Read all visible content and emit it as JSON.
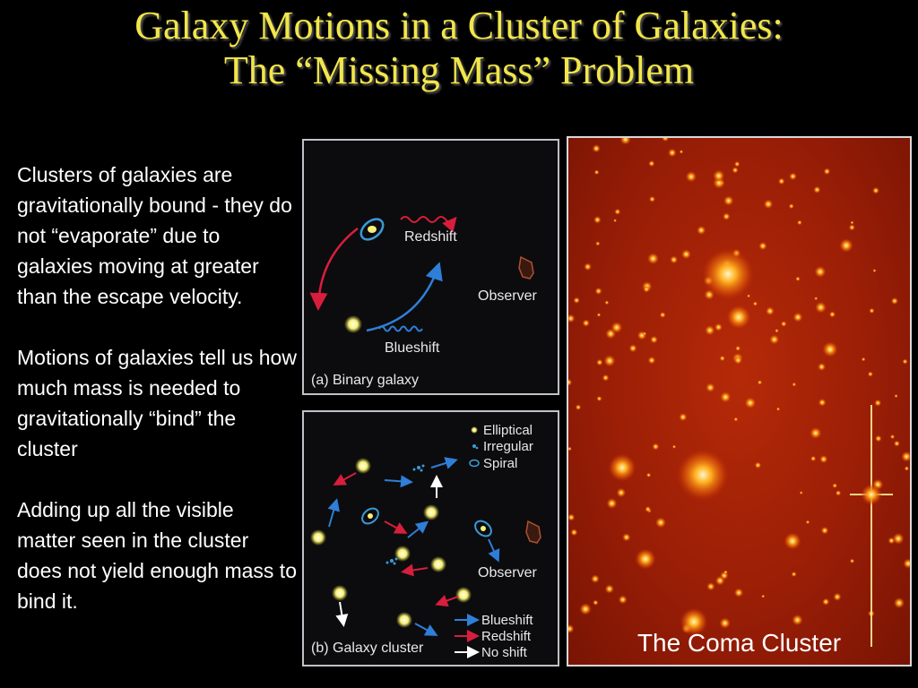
{
  "title": {
    "line1": "Galaxy Motions in a Cluster of Galaxies:",
    "line2": "The “Missing Mass” Problem"
  },
  "paragraphs": [
    "Clusters of galaxies are gravitationally bound - they do not “evaporate” due to galaxies moving at greater than the escape velocity.",
    "Motions of galaxies tell us how much mass is needed to gravitationally “bind” the cluster",
    "Adding up all the visible matter seen in the cluster does not yield enough mass to bind it."
  ],
  "panel_a": {
    "caption": "(a)  Binary galaxy",
    "redshift": "Redshift",
    "blueshift": "Blueshift",
    "observer": "Observer"
  },
  "panel_b": {
    "caption": "(b)  Galaxy cluster",
    "observer": "Observer",
    "legend_types": [
      "Elliptical",
      "Irregular",
      "Spiral"
    ],
    "legend_shifts": [
      "Blueshift",
      "Redshift",
      "No shift"
    ]
  },
  "coma": {
    "caption": "The Coma Cluster"
  },
  "colors": {
    "title": "#f2e64a",
    "redshift": "#d81e3c",
    "blueshift": "#2f7fd8",
    "noshift": "#ffffff"
  }
}
